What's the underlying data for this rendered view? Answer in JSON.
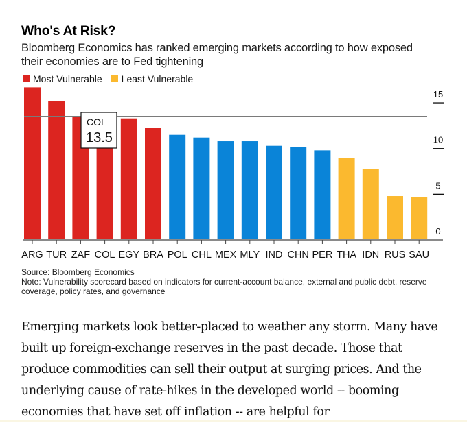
{
  "header": {
    "title": "Who's At Risk?",
    "subtitle": "Bloomberg Economics has ranked emerging markets according to how exposed their economies are to Fed tightening"
  },
  "legend": [
    {
      "label": "Most Vulnerable",
      "color": "#dc2520"
    },
    {
      "label": "Least Vulnerable",
      "color": "#fbb92f"
    }
  ],
  "tooltip": {
    "label": "COL",
    "value": "13.5"
  },
  "source": {
    "line1": "Source: Bloomberg Economics",
    "line2": "Note: Vulnerability scorecard based on indicators for current-account balance, external and public debt, reserve coverage, policy rates, and governance"
  },
  "article": {
    "paragraph": "Emerging markets look better-placed to weather any storm. Many have built up foreign-exchange reserves in the past decade. Those that produce commodities can sell their output at surging prices. And the underlying cause of rate-hikes in the developed world -- booming economies that have set off inflation -- are helpful for"
  },
  "chart_data": {
    "type": "bar",
    "title": "Who's At Risk?",
    "subtitle": "Bloomberg Economics has ranked emerging markets according to how exposed their economies are to Fed tightening",
    "xlabel": "",
    "ylabel": "",
    "categories": [
      "ARG",
      "TUR",
      "ZAF",
      "COL",
      "EGY",
      "BRA",
      "POL",
      "CHL",
      "MEX",
      "MLY",
      "IND",
      "CHN",
      "PER",
      "THA",
      "IDN",
      "RUS",
      "SAU"
    ],
    "values": [
      16.7,
      15.2,
      13.5,
      13.5,
      13.3,
      12.3,
      11.5,
      11.2,
      10.8,
      10.8,
      10.3,
      10.2,
      9.8,
      9.0,
      7.8,
      4.8,
      4.7
    ],
    "groups": [
      "most",
      "most",
      "most",
      "most",
      "most",
      "most",
      "mid",
      "mid",
      "mid",
      "mid",
      "mid",
      "mid",
      "mid",
      "least",
      "least",
      "least",
      "least"
    ],
    "colors": {
      "most": "#dc2520",
      "mid": "#0a84d8",
      "least": "#fbb92f"
    },
    "ylim": [
      0,
      17
    ],
    "yticks": [
      0,
      5,
      10,
      15
    ],
    "y_axis_side": "right",
    "grid": false,
    "legend_position": "top-left",
    "highlight": {
      "category": "COL",
      "value": 13.5,
      "reference_line": true
    }
  }
}
